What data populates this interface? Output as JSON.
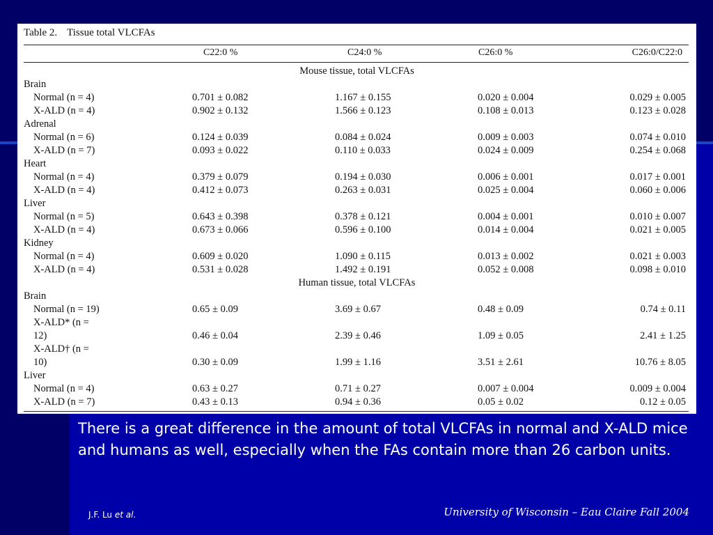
{
  "slide": {
    "body": "There is a great difference in the amount of total VLCFAs in normal and X-ALD mice and humans as well, especially when the FAs contain more than 26 carbon units.",
    "credit_author": "J.F. Lu",
    "credit_etal": "et al.",
    "footer": "University of Wisconsin – Eau Claire   Fall 2004"
  },
  "table": {
    "label": "Table 2.",
    "name": "Tissue total VLCFAs",
    "columns": [
      "C22:0 %",
      "C24:0 %",
      "C26:0 %",
      "C26:0/C22:0"
    ],
    "sections": [
      {
        "title": "Mouse tissue, total VLCFAs",
        "groups": [
          {
            "name": "Brain",
            "rows": [
              {
                "label": "Normal (n = 4)",
                "values": [
                  "0.701 ± 0.082",
                  "1.167 ± 0.155",
                  "0.020 ± 0.004",
                  "0.029 ± 0.005"
                ]
              },
              {
                "label": "X-ALD (n = 4)",
                "values": [
                  "0.902 ± 0.132",
                  "1.566 ± 0.123",
                  "0.108 ± 0.013",
                  "0.123 ± 0.028"
                ]
              }
            ]
          },
          {
            "name": "Adrenal",
            "rows": [
              {
                "label": "Normal (n = 6)",
                "values": [
                  "0.124 ± 0.039",
                  "0.084 ± 0.024",
                  "0.009 ± 0.003",
                  "0.074 ± 0.010"
                ]
              },
              {
                "label": "X-ALD (n = 7)",
                "values": [
                  "0.093 ± 0.022",
                  "0.110 ± 0.033",
                  "0.024 ± 0.009",
                  "0.254 ± 0.068"
                ]
              }
            ]
          },
          {
            "name": "Heart",
            "rows": [
              {
                "label": "Normal (n = 4)",
                "values": [
                  "0.379 ± 0.079",
                  "0.194 ± 0.030",
                  "0.006 ± 0.001",
                  "0.017 ± 0.001"
                ]
              },
              {
                "label": "X-ALD (n = 4)",
                "values": [
                  "0.412 ± 0.073",
                  "0.263 ± 0.031",
                  "0.025 ± 0.004",
                  "0.060 ± 0.006"
                ]
              }
            ]
          },
          {
            "name": "Liver",
            "rows": [
              {
                "label": "Normal (n = 5)",
                "values": [
                  "0.643 ± 0.398",
                  "0.378 ± 0.121",
                  "0.004 ± 0.001",
                  "0.010 ± 0.007"
                ]
              },
              {
                "label": "X-ALD (n = 4)",
                "values": [
                  "0.673 ± 0.066",
                  "0.596 ± 0.100",
                  "0.014 ± 0.004",
                  "0.021 ± 0.005"
                ]
              }
            ]
          },
          {
            "name": "Kidney",
            "rows": [
              {
                "label": "Normal (n = 4)",
                "values": [
                  "0.609 ± 0.020",
                  "1.090 ± 0.115",
                  "0.013 ± 0.002",
                  "0.021 ± 0.003"
                ]
              },
              {
                "label": "X-ALD (n = 4)",
                "values": [
                  "0.531 ± 0.028",
                  "1.492 ± 0.191",
                  "0.052 ± 0.008",
                  "0.098 ± 0.010"
                ]
              }
            ]
          }
        ]
      },
      {
        "title": "Human tissue, total VLCFAs",
        "groups": [
          {
            "name": "Brain",
            "rows": [
              {
                "label": "Normal (n = 19)",
                "values": [
                  "0.65 ± 0.09",
                  "3.69 ± 0.67",
                  "0.48 ± 0.09",
                  "0.74 ± 0.11"
                ]
              },
              {
                "label": "X-ALD* (n =",
                "label_cont": "12)",
                "values": [
                  "0.46 ± 0.04",
                  "2.39 ± 0.46",
                  "1.09 ± 0.05",
                  "2.41 ± 1.25"
                ]
              },
              {
                "label": "X-ALD† (n =",
                "label_cont": "10)",
                "values": [
                  "0.30 ± 0.09",
                  "1.99 ± 1.16",
                  "3.51 ± 2.61",
                  "10.76 ± 8.05"
                ]
              }
            ]
          },
          {
            "name": "Liver",
            "rows": [
              {
                "label": "Normal (n = 4)",
                "values": [
                  "0.63 ± 0.27",
                  "0.71 ± 0.27",
                  "0.007 ± 0.004",
                  "0.009 ± 0.004"
                ]
              },
              {
                "label": "X-ALD (n = 7)",
                "values": [
                  "0.43 ± 0.13",
                  "0.94 ± 0.36",
                  "0.05 ± 0.02",
                  "0.12 ± 0.05"
                ]
              }
            ]
          }
        ]
      }
    ]
  }
}
